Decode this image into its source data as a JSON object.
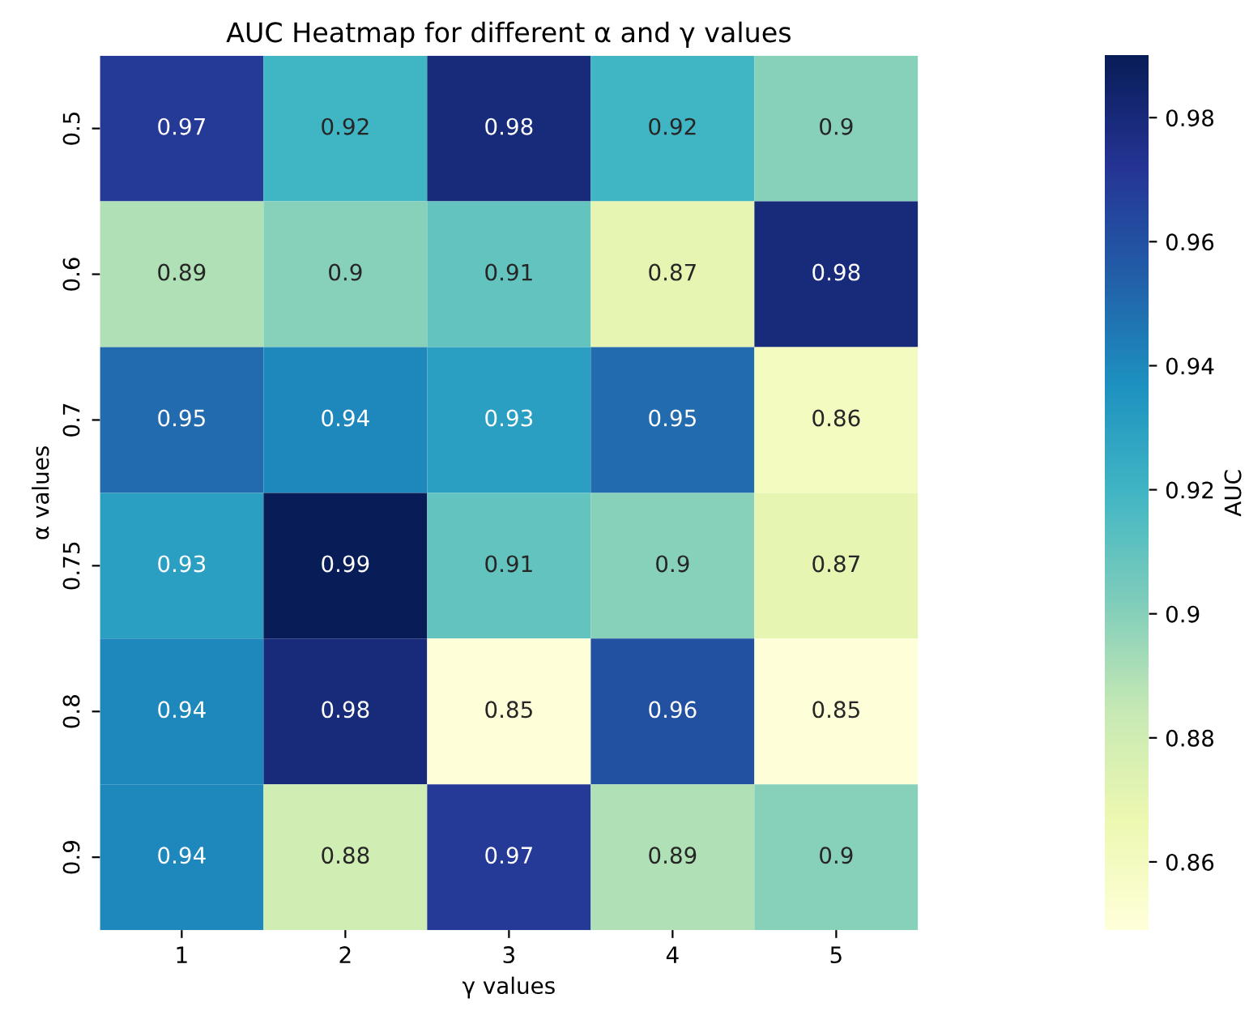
{
  "chart_data": {
    "type": "heatmap",
    "title": "AUC Heatmap for different α and γ values",
    "xlabel": "γ values",
    "ylabel": "α values",
    "clabel": "AUC",
    "categories": [
      "1",
      "2",
      "3",
      "4",
      "5"
    ],
    "y_categories": [
      "0.5",
      "0.6",
      "0.7",
      "0.75",
      "0.8",
      "0.9"
    ],
    "cells": [
      [
        0.97,
        0.92,
        0.98,
        0.92,
        0.9
      ],
      [
        0.89,
        0.9,
        0.91,
        0.87,
        0.98
      ],
      [
        0.95,
        0.94,
        0.93,
        0.95,
        0.86
      ],
      [
        0.93,
        0.99,
        0.91,
        0.9,
        0.87
      ],
      [
        0.94,
        0.98,
        0.85,
        0.96,
        0.85
      ],
      [
        0.94,
        0.88,
        0.97,
        0.89,
        0.9
      ]
    ],
    "data_labels": true,
    "clim": [
      0.849,
      0.99
    ],
    "cticks": [
      0.86,
      0.88,
      0.9,
      0.92,
      0.94,
      0.96,
      0.98
    ]
  }
}
